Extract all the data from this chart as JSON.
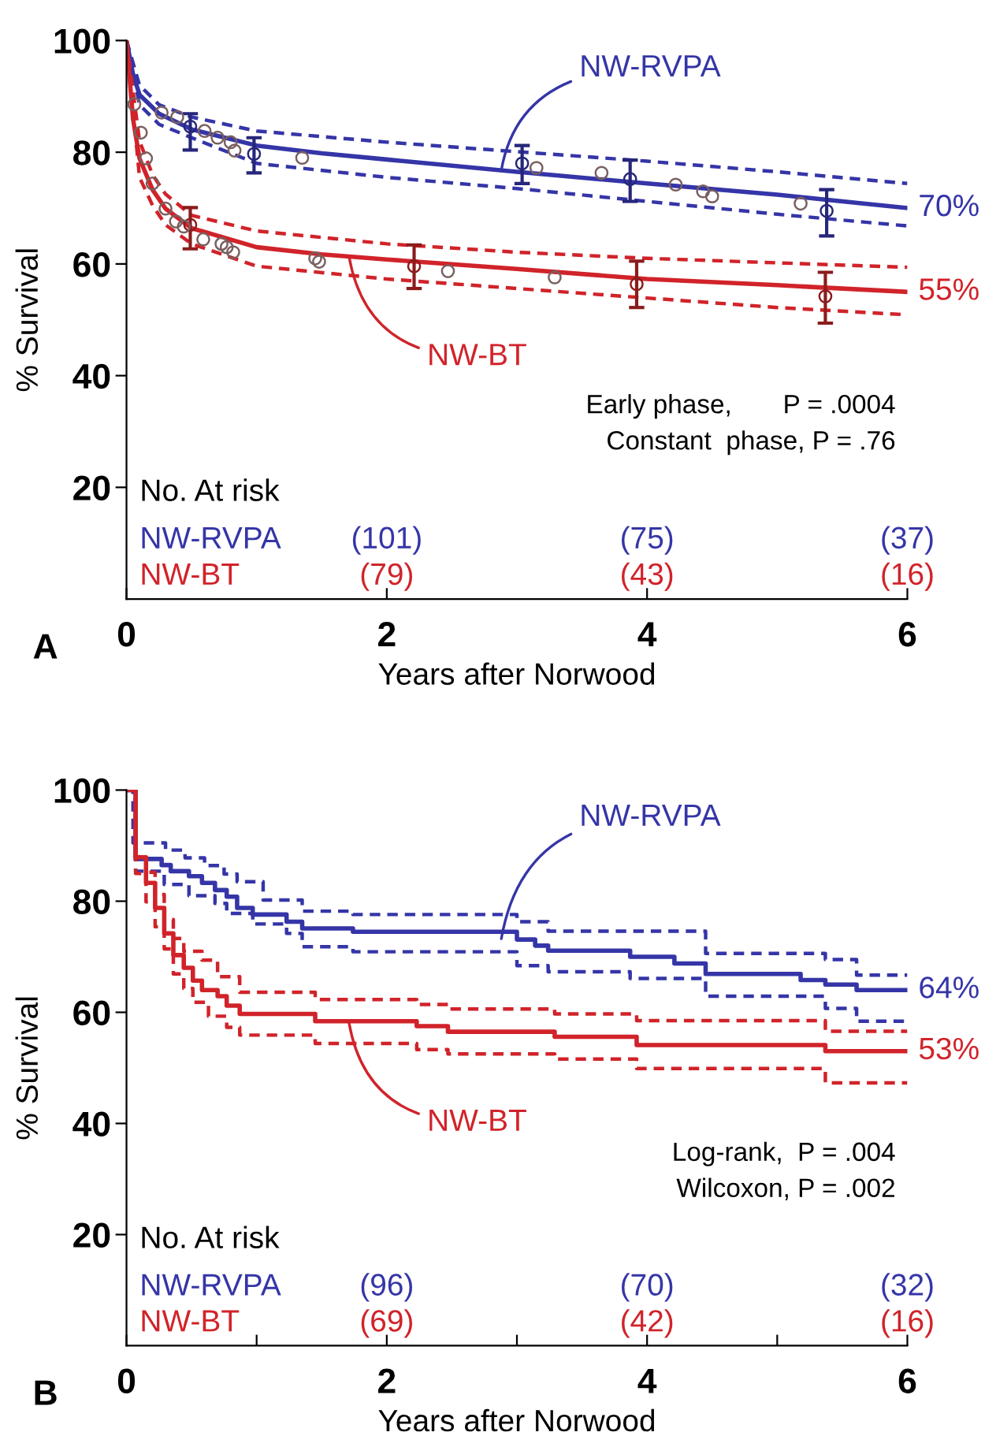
{
  "chart_data": [
    {
      "type": "line",
      "title": "A",
      "xlabel": "Years after Norwood",
      "ylabel": "% Survival",
      "xlim": [
        0,
        6
      ],
      "ylim": [
        0,
        100
      ],
      "xticks": [
        0,
        2,
        4,
        6
      ],
      "yticks": [
        20,
        40,
        60,
        80,
        100
      ],
      "series": [
        {
          "name": "NW-RVPA",
          "type": "line",
          "color": "#3535a8",
          "x": [
            0,
            0.05,
            0.1,
            0.25,
            0.5,
            1,
            1.5,
            2,
            3,
            4,
            5,
            6
          ],
          "values": [
            100,
            94,
            90.3,
            86.9,
            84.1,
            81.2,
            79.8,
            78.7,
            76.5,
            74.4,
            72.4,
            70
          ],
          "value_labels": [
            null,
            null,
            null,
            null,
            null,
            null,
            null,
            null,
            null,
            null,
            null,
            "70%"
          ]
        },
        {
          "type": "line",
          "line_style": "dashed",
          "color": "#3535a8",
          "x": [
            0,
            0.1,
            0.25,
            0.5,
            1,
            2,
            3,
            4,
            5,
            6
          ],
          "values": [
            100,
            92,
            88.5,
            86.3,
            83.8,
            81.8,
            80.1,
            78.4,
            76.5,
            74.4
          ]
        },
        {
          "type": "line",
          "line_style": "dashed",
          "color": "#3535a8",
          "x": [
            0,
            0.1,
            0.25,
            0.5,
            1,
            2,
            3,
            4,
            5,
            6
          ],
          "values": [
            100,
            88.5,
            85,
            82.6,
            78.0,
            75.5,
            73.5,
            71.2,
            68.9,
            66.8
          ]
        },
        {
          "type": "scatter",
          "marker": "circle",
          "color": "#26267a",
          "x": [
            0.49,
            0.98,
            3.04,
            3.87,
            5.38
          ],
          "values": [
            84.6,
            79.7,
            78.0,
            75.2,
            69.5
          ],
          "errors": [
            [
              80.4,
              86.9
            ],
            [
              76.3,
              82.6
            ],
            [
              74.4,
              81.2
            ],
            [
              71.2,
              78.6
            ],
            [
              65.0,
              73.3
            ]
          ]
        },
        {
          "type": "scatter",
          "marker": "circle",
          "color": "#7a6060",
          "x": [
            0.27,
            0.39,
            0.6,
            0.7,
            0.8,
            0.83,
            1.35,
            3.15,
            3.65,
            4.22,
            4.43,
            4.5,
            5.18
          ],
          "values": [
            87.1,
            86.3,
            83.8,
            82.6,
            81.8,
            80.3,
            79.0,
            77.2,
            76.3,
            74.2,
            73.0,
            72.1,
            70.8
          ]
        },
        {
          "name": "NW-BT",
          "type": "line",
          "color": "#d1232a",
          "x": [
            0,
            0.05,
            0.1,
            0.2,
            0.3,
            0.5,
            1,
            1.5,
            2,
            3,
            4,
            5,
            6
          ],
          "values": [
            100,
            86,
            78.9,
            73.3,
            69.9,
            66.4,
            63.0,
            61.7,
            60.8,
            59.1,
            57.3,
            56.2,
            55
          ],
          "value_labels": [
            null,
            null,
            null,
            null,
            null,
            null,
            null,
            null,
            null,
            null,
            null,
            null,
            "55%"
          ]
        },
        {
          "type": "line",
          "line_style": "dashed",
          "color": "#d1232a",
          "x": [
            0,
            0.1,
            0.2,
            0.3,
            0.5,
            1,
            2,
            3,
            4,
            5,
            6
          ],
          "values": [
            100,
            82,
            76,
            72.5,
            68.7,
            65.9,
            63.6,
            62.1,
            61.0,
            60.2,
            59.4
          ]
        },
        {
          "type": "line",
          "line_style": "dashed",
          "color": "#d1232a",
          "x": [
            0,
            0.1,
            0.2,
            0.3,
            0.5,
            1,
            2,
            3,
            4,
            5,
            6
          ],
          "values": [
            100,
            75.5,
            70.5,
            67,
            63.6,
            59.6,
            57.3,
            55.6,
            53.9,
            52.2,
            50.9
          ]
        },
        {
          "type": "scatter",
          "marker": "circle",
          "color": "#8b1c1c",
          "x": [
            0.49,
            2.21,
            3.92,
            5.37
          ],
          "values": [
            67.0,
            59.6,
            56.4,
            54.2
          ],
          "errors": [
            [
              62.7,
              70.1
            ],
            [
              55.6,
              63.4
            ],
            [
              52.2,
              60.5
            ],
            [
              49.4,
              58.5
            ]
          ]
        },
        {
          "type": "scatter",
          "marker": "circle",
          "color": "#7a6060",
          "x": [
            0.06,
            0.11,
            0.15,
            0.2,
            0.3,
            0.38,
            0.44,
            0.59,
            0.73,
            0.77,
            0.82,
            1.45,
            1.48,
            2.47,
            3.29
          ],
          "values": [
            88.6,
            83.5,
            78.9,
            74.4,
            69.9,
            67.6,
            66.7,
            64.4,
            63.6,
            63.0,
            62.1,
            61.0,
            60.4,
            58.7,
            57.6
          ]
        }
      ],
      "annotations": [
        "Early phase,       P = .0004",
        "Constant  phase, P = .76",
        "No. At risk",
        "NW-RVPA",
        "(101)",
        "(75)",
        "(37)",
        "NW-BT",
        "(79)",
        "(43)",
        "(16)"
      ]
    },
    {
      "type": "step",
      "title": "B",
      "xlabel": "Years after Norwood",
      "ylabel": "% Survival",
      "xlim": [
        0,
        6
      ],
      "ylim": [
        0,
        100
      ],
      "xticks": [
        0,
        {
          "value": 1,
          "label": null
        },
        2,
        {
          "value": 3,
          "label": null
        },
        4,
        {
          "value": 5,
          "label": null
        },
        6
      ],
      "yticks": [
        20,
        40,
        60,
        80,
        100
      ],
      "series": [
        {
          "name": "NW-RVPA",
          "color": "#3535a8",
          "x": [
            0,
            0.07,
            0.27,
            0.34,
            0.48,
            0.58,
            0.68,
            0.77,
            0.85,
            0.97,
            1.23,
            1.35,
            1.74,
            3.0,
            3.14,
            3.24,
            3.87,
            4.21,
            4.45,
            5.18,
            5.37,
            5.61,
            6
          ],
          "values": [
            100,
            87.6,
            86.5,
            85.4,
            84.5,
            83.3,
            82.0,
            80.8,
            78.8,
            77.6,
            76.3,
            75.1,
            74.5,
            73.1,
            72.0,
            71.1,
            70.0,
            68.8,
            66.9,
            65.8,
            65,
            64,
            64
          ],
          "value_labels": [
            null,
            null,
            null,
            null,
            null,
            null,
            null,
            null,
            null,
            null,
            null,
            null,
            null,
            null,
            null,
            null,
            null,
            null,
            null,
            null,
            null,
            null,
            "64%"
          ]
        },
        {
          "line_style": "dashed",
          "color": "#3535a8",
          "x": [
            0,
            0.05,
            0.3,
            0.45,
            0.6,
            0.75,
            0.85,
            1.05,
            1.35,
            1.74,
            3.0,
            3.24,
            4.45,
            5.37,
            5.61,
            6
          ],
          "values": [
            100,
            90.5,
            89.2,
            87.8,
            86.4,
            84.9,
            83.5,
            80.2,
            78.2,
            77.6,
            76.3,
            74.6,
            70.6,
            69.5,
            66.7,
            66.7
          ]
        },
        {
          "line_style": "dashed",
          "color": "#3535a8",
          "x": [
            0,
            0.07,
            0.29,
            0.48,
            0.68,
            0.77,
            0.97,
            1.23,
            1.35,
            1.74,
            3.0,
            3.24,
            3.87,
            4.45,
            5.37,
            5.61,
            6
          ],
          "values": [
            100,
            85.4,
            83.0,
            81.0,
            79.6,
            77.8,
            75.9,
            74.2,
            71.8,
            70.9,
            68.4,
            67.3,
            66.1,
            62.9,
            60.7,
            58.4,
            58.4
          ]
        },
        {
          "name": "NW-BT",
          "color": "#d1232a",
          "x": [
            0,
            0.07,
            0.15,
            0.22,
            0.29,
            0.36,
            0.44,
            0.51,
            0.58,
            0.7,
            0.77,
            0.87,
            1.45,
            2.23,
            2.47,
            3.29,
            3.92,
            5.37,
            6
          ],
          "values": [
            100,
            87.9,
            83.3,
            78.8,
            74.2,
            70.3,
            68.0,
            65.7,
            64.0,
            62.9,
            61.2,
            59.7,
            58.4,
            57.5,
            56.5,
            55.6,
            54.1,
            53,
            53
          ],
          "value_labels": [
            null,
            null,
            null,
            null,
            null,
            null,
            null,
            null,
            null,
            null,
            null,
            null,
            null,
            null,
            null,
            null,
            null,
            null,
            "53%"
          ]
        },
        {
          "line_style": "dashed",
          "color": "#d1232a",
          "x": [
            0,
            0.07,
            0.15,
            0.22,
            0.29,
            0.36,
            0.44,
            0.58,
            0.7,
            0.87,
            1.45,
            2.23,
            2.47,
            3.29,
            3.92,
            5.37,
            6
          ],
          "values": [
            100,
            88.0,
            85.2,
            81.2,
            76.7,
            73.3,
            71.0,
            69.4,
            66.4,
            63.6,
            62.3,
            61.4,
            60.6,
            59.7,
            58.5,
            56.6,
            56.6
          ]
        },
        {
          "line_style": "dashed",
          "color": "#d1232a",
          "x": [
            0,
            0.07,
            0.15,
            0.22,
            0.29,
            0.36,
            0.44,
            0.51,
            0.63,
            0.77,
            0.87,
            1.45,
            2.23,
            2.47,
            3.29,
            3.92,
            5.37,
            6
          ],
          "values": [
            100,
            85.0,
            79.9,
            75.4,
            71.4,
            66.9,
            64.3,
            61.8,
            59.3,
            57.3,
            55.9,
            54.4,
            53.3,
            52.5,
            51.6,
            49.9,
            47.3,
            47.3
          ]
        }
      ],
      "annotations": [
        "Log-rank,  P = .004",
        "Wilcoxon, P = .002",
        "No. At risk",
        "NW-RVPA",
        "(96)",
        "(70)",
        "(32)",
        "NW-BT",
        "(69)",
        "(42)",
        "(16)"
      ]
    }
  ]
}
